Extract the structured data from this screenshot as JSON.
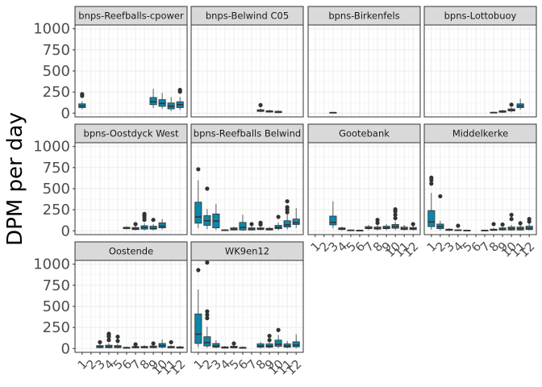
{
  "chart_data": {
    "type": "boxplot",
    "layout": "facet_wrap",
    "ylabel": "DPM per day",
    "xlabel": "",
    "ylim": [
      0,
      1000
    ],
    "y_ticks": [
      0,
      250,
      500,
      750,
      1000
    ],
    "categories": [
      "1",
      "2",
      "3",
      "4",
      "5",
      "6",
      "7",
      "8",
      "9",
      "10",
      "11",
      "12"
    ],
    "fill_color": "#0e86a8",
    "panels": [
      {
        "name": "bnps-Reefballs-cpower",
        "boxes": [
          {
            "x": "1",
            "q1": 65,
            "med": 85,
            "q3": 110,
            "lo": 45,
            "hi": 140,
            "out": [
              205,
              225
            ]
          },
          {
            "x": "9",
            "q1": 100,
            "med": 135,
            "q3": 185,
            "lo": 60,
            "hi": 290,
            "out": []
          },
          {
            "x": "10",
            "q1": 80,
            "med": 115,
            "q3": 160,
            "lo": 50,
            "hi": 240,
            "out": []
          },
          {
            "x": "11",
            "q1": 50,
            "med": 80,
            "q3": 120,
            "lo": 25,
            "hi": 190,
            "out": []
          },
          {
            "x": "12",
            "q1": 65,
            "med": 100,
            "q3": 135,
            "lo": 35,
            "hi": 190,
            "out": [
              255,
              275
            ]
          }
        ]
      },
      {
        "name": "bnps-Belwind C05",
        "boxes": [
          {
            "x": "8",
            "q1": 20,
            "med": 30,
            "q3": 40,
            "lo": 10,
            "hi": 55,
            "out": [
              95
            ]
          },
          {
            "x": "9",
            "q1": 12,
            "med": 20,
            "q3": 28,
            "lo": 5,
            "hi": 40,
            "out": []
          },
          {
            "x": "10",
            "q1": 5,
            "med": 12,
            "q3": 22,
            "lo": 0,
            "hi": 32,
            "out": []
          }
        ]
      },
      {
        "name": "bpns-Birkenfels",
        "boxes": [
          {
            "x": "3",
            "q1": 3,
            "med": 6,
            "q3": 9,
            "lo": 0,
            "hi": 12,
            "out": []
          }
        ]
      },
      {
        "name": "bpns-Lottobuoy",
        "boxes": [
          {
            "x": "8",
            "q1": 3,
            "med": 6,
            "q3": 10,
            "lo": 0,
            "hi": 15,
            "out": []
          },
          {
            "x": "9",
            "q1": 10,
            "med": 18,
            "q3": 28,
            "lo": 2,
            "hi": 40,
            "out": []
          },
          {
            "x": "10",
            "q1": 25,
            "med": 35,
            "q3": 50,
            "lo": 10,
            "hi": 70,
            "out": [
              100
            ]
          },
          {
            "x": "11",
            "q1": 65,
            "med": 85,
            "q3": 110,
            "lo": 40,
            "hi": 170,
            "out": []
          }
        ]
      },
      {
        "name": "bpns-Oostdyck West",
        "boxes": [
          {
            "x": "6",
            "q1": 25,
            "med": 33,
            "q3": 42,
            "lo": 18,
            "hi": 55,
            "out": []
          },
          {
            "x": "7",
            "q1": 15,
            "med": 25,
            "q3": 40,
            "lo": 5,
            "hi": 60,
            "out": [
              80
            ]
          },
          {
            "x": "8",
            "q1": 20,
            "med": 38,
            "q3": 60,
            "lo": 5,
            "hi": 90,
            "out": [
              130,
              160,
              185,
              200
            ]
          },
          {
            "x": "9",
            "q1": 20,
            "med": 30,
            "q3": 55,
            "lo": 5,
            "hi": 80,
            "out": [
              130
            ]
          },
          {
            "x": "10",
            "q1": 35,
            "med": 55,
            "q3": 95,
            "lo": 15,
            "hi": 140,
            "out": []
          }
        ]
      },
      {
        "name": "bpns-Reefballs Belwind",
        "boxes": [
          {
            "x": "1",
            "q1": 90,
            "med": 165,
            "q3": 340,
            "lo": 30,
            "hi": 600,
            "out": [
              730
            ]
          },
          {
            "x": "2",
            "q1": 65,
            "med": 120,
            "q3": 180,
            "lo": 20,
            "hi": 260,
            "out": [
              500
            ]
          },
          {
            "x": "3",
            "q1": 35,
            "med": 115,
            "q3": 200,
            "lo": 10,
            "hi": 320,
            "out": []
          },
          {
            "x": "4",
            "q1": 3,
            "med": 6,
            "q3": 12,
            "lo": 0,
            "hi": 18,
            "out": []
          },
          {
            "x": "5",
            "q1": 10,
            "med": 20,
            "q3": 35,
            "lo": 3,
            "hi": 50,
            "out": []
          },
          {
            "x": "6",
            "q1": 10,
            "med": 40,
            "q3": 100,
            "lo": 2,
            "hi": 190,
            "out": []
          },
          {
            "x": "7",
            "q1": 10,
            "med": 22,
            "q3": 35,
            "lo": 3,
            "hi": 60,
            "out": [
              80
            ]
          },
          {
            "x": "8",
            "q1": 15,
            "med": 25,
            "q3": 35,
            "lo": 5,
            "hi": 55,
            "out": [
              75,
              95
            ]
          },
          {
            "x": "9",
            "q1": 10,
            "med": 20,
            "q3": 30,
            "lo": 3,
            "hi": 45,
            "out": []
          },
          {
            "x": "10",
            "q1": 25,
            "med": 40,
            "q3": 65,
            "lo": 8,
            "hi": 100,
            "out": [
              165
            ]
          },
          {
            "x": "11",
            "q1": 45,
            "med": 70,
            "q3": 120,
            "lo": 15,
            "hi": 200,
            "out": [
              220,
              250,
              280,
              350
            ]
          },
          {
            "x": "12",
            "q1": 75,
            "med": 95,
            "q3": 140,
            "lo": 35,
            "hi": 270,
            "out": []
          }
        ]
      },
      {
        "name": "Gootebank",
        "boxes": [
          {
            "x": "3",
            "q1": 70,
            "med": 100,
            "q3": 175,
            "lo": 30,
            "hi": 350,
            "out": []
          },
          {
            "x": "4",
            "q1": 15,
            "med": 25,
            "q3": 35,
            "lo": 5,
            "hi": 50,
            "out": []
          },
          {
            "x": "5",
            "q1": 3,
            "med": 6,
            "q3": 10,
            "lo": 0,
            "hi": 15,
            "out": []
          },
          {
            "x": "6",
            "q1": 2,
            "med": 4,
            "q3": 7,
            "lo": 0,
            "hi": 10,
            "out": []
          },
          {
            "x": "7",
            "q1": 25,
            "med": 35,
            "q3": 50,
            "lo": 10,
            "hi": 70,
            "out": []
          },
          {
            "x": "8",
            "q1": 20,
            "med": 30,
            "q3": 45,
            "lo": 5,
            "hi": 70,
            "out": [
              95,
              130
            ]
          },
          {
            "x": "9",
            "q1": 25,
            "med": 35,
            "q3": 55,
            "lo": 8,
            "hi": 80,
            "out": []
          },
          {
            "x": "10",
            "q1": 30,
            "med": 50,
            "q3": 75,
            "lo": 10,
            "hi": 110,
            "out": [
              150,
              190,
              230,
              255
            ]
          },
          {
            "x": "11",
            "q1": 15,
            "med": 25,
            "q3": 45,
            "lo": 5,
            "hi": 70,
            "out": []
          },
          {
            "x": "12",
            "q1": 15,
            "med": 25,
            "q3": 40,
            "lo": 5,
            "hi": 60,
            "out": [
              80
            ]
          }
        ]
      },
      {
        "name": "Middelkerke",
        "boxes": [
          {
            "x": "1",
            "q1": 50,
            "med": 105,
            "q3": 240,
            "lo": 15,
            "hi": 450,
            "out": [
              560,
              600,
              630
            ]
          },
          {
            "x": "2",
            "q1": 25,
            "med": 50,
            "q3": 80,
            "lo": 5,
            "hi": 120,
            "out": [
              410
            ]
          },
          {
            "x": "3",
            "q1": 5,
            "med": 10,
            "q3": 20,
            "lo": 0,
            "hi": 30,
            "out": []
          },
          {
            "x": "4",
            "q1": 3,
            "med": 6,
            "q3": 12,
            "lo": 0,
            "hi": 20,
            "out": [
              60
            ]
          },
          {
            "x": "5",
            "q1": 2,
            "med": 4,
            "q3": 8,
            "lo": 0,
            "hi": 12,
            "out": []
          },
          {
            "x": "7",
            "q1": 2,
            "med": 5,
            "q3": 8,
            "lo": 0,
            "hi": 12,
            "out": []
          },
          {
            "x": "8",
            "q1": 5,
            "med": 12,
            "q3": 20,
            "lo": 0,
            "hi": 35,
            "out": [
              80
            ]
          },
          {
            "x": "9",
            "q1": 10,
            "med": 20,
            "q3": 35,
            "lo": 2,
            "hi": 55,
            "out": [
              75
            ]
          },
          {
            "x": "10",
            "q1": 10,
            "med": 25,
            "q3": 45,
            "lo": 2,
            "hi": 70,
            "out": [
              140,
              190
            ]
          },
          {
            "x": "11",
            "q1": 10,
            "med": 25,
            "q3": 45,
            "lo": 2,
            "hi": 70,
            "out": [
              90
            ]
          },
          {
            "x": "12",
            "q1": 15,
            "med": 30,
            "q3": 55,
            "lo": 3,
            "hi": 90,
            "out": [
              110,
              140
            ]
          }
        ]
      },
      {
        "name": "Oostende",
        "boxes": [
          {
            "x": "3",
            "q1": 10,
            "med": 20,
            "q3": 35,
            "lo": 3,
            "hi": 55,
            "out": [
              75
            ]
          },
          {
            "x": "4",
            "q1": 10,
            "med": 20,
            "q3": 40,
            "lo": 3,
            "hi": 60,
            "out": [
              100,
              140,
              160,
              175
            ]
          },
          {
            "x": "5",
            "q1": 10,
            "med": 20,
            "q3": 35,
            "lo": 3,
            "hi": 55,
            "out": [
              90,
              140
            ]
          },
          {
            "x": "6",
            "q1": 3,
            "med": 8,
            "q3": 15,
            "lo": 0,
            "hi": 25,
            "out": []
          },
          {
            "x": "7",
            "q1": 8,
            "med": 15,
            "q3": 25,
            "lo": 2,
            "hi": 40,
            "out": [
              50
            ]
          },
          {
            "x": "8",
            "q1": 8,
            "med": 15,
            "q3": 25,
            "lo": 2,
            "hi": 40,
            "out": []
          },
          {
            "x": "9",
            "q1": 10,
            "med": 18,
            "q3": 30,
            "lo": 3,
            "hi": 45,
            "out": [
              60
            ]
          },
          {
            "x": "10",
            "q1": 15,
            "med": 35,
            "q3": 60,
            "lo": 3,
            "hi": 110,
            "out": []
          },
          {
            "x": "11",
            "q1": 8,
            "med": 15,
            "q3": 25,
            "lo": 2,
            "hi": 40,
            "out": [
              75
            ]
          },
          {
            "x": "12",
            "q1": 5,
            "med": 10,
            "q3": 20,
            "lo": 0,
            "hi": 30,
            "out": []
          }
        ]
      },
      {
        "name": "WK9en12",
        "boxes": [
          {
            "x": "1",
            "q1": 60,
            "med": 170,
            "q3": 410,
            "lo": 15,
            "hi": 700,
            "out": [
              930
            ]
          },
          {
            "x": "2",
            "q1": 30,
            "med": 70,
            "q3": 140,
            "lo": 8,
            "hi": 260,
            "out": [
              360,
              400,
              440,
              1020
            ]
          },
          {
            "x": "3",
            "q1": 15,
            "med": 30,
            "q3": 60,
            "lo": 3,
            "hi": 100,
            "out": []
          },
          {
            "x": "4",
            "q1": 5,
            "med": 10,
            "q3": 20,
            "lo": 0,
            "hi": 30,
            "out": []
          },
          {
            "x": "5",
            "q1": 8,
            "med": 15,
            "q3": 28,
            "lo": 2,
            "hi": 45,
            "out": [
              60
            ]
          },
          {
            "x": "6",
            "q1": 3,
            "med": 8,
            "q3": 15,
            "lo": 0,
            "hi": 25,
            "out": []
          },
          {
            "x": "8",
            "q1": 15,
            "med": 30,
            "q3": 55,
            "lo": 3,
            "hi": 80,
            "out": []
          },
          {
            "x": "9",
            "q1": 15,
            "med": 30,
            "q3": 55,
            "lo": 3,
            "hi": 80,
            "out": [
              100,
              150
            ]
          },
          {
            "x": "10",
            "q1": 25,
            "med": 50,
            "q3": 100,
            "lo": 5,
            "hi": 160,
            "out": [
              220
            ]
          },
          {
            "x": "11",
            "q1": 15,
            "med": 30,
            "q3": 55,
            "lo": 3,
            "hi": 90,
            "out": []
          },
          {
            "x": "12",
            "q1": 20,
            "med": 40,
            "q3": 80,
            "lo": 5,
            "hi": 170,
            "out": []
          }
        ]
      }
    ]
  }
}
